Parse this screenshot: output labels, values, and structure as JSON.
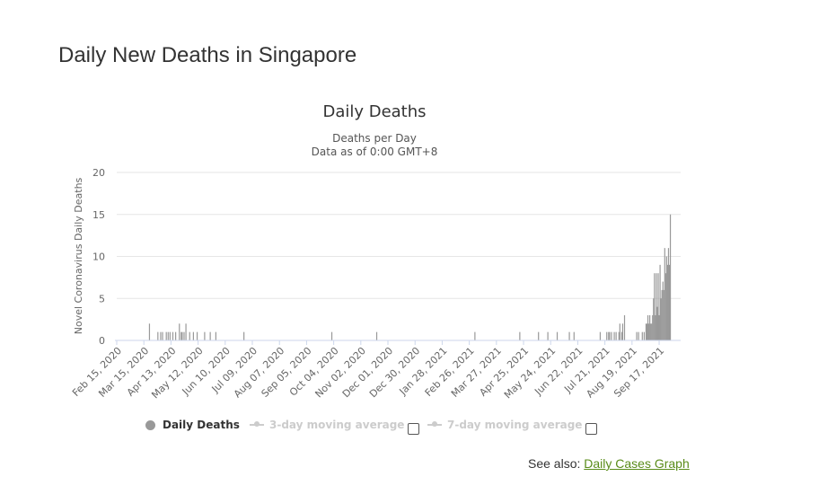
{
  "page": {
    "title": "Daily New Deaths in Singapore"
  },
  "chart_data": {
    "type": "bar",
    "title": "Daily Deaths",
    "subtitle_line1": "Deaths per Day",
    "subtitle_line2": "Data as of 0:00 GMT+8",
    "xlabel": "",
    "ylabel": "Novel Coronavirus Daily Deaths",
    "ylim": [
      0,
      20
    ],
    "yticks": [
      0,
      5,
      10,
      15,
      20
    ],
    "grid": true,
    "series_color": "#999999",
    "x_start_date": "2020-02-15",
    "x_end_date": "2021-10-10",
    "xtick_labels": [
      "Feb 15, 2020",
      "Mar 15, 2020",
      "Apr 13, 2020",
      "May 12, 2020",
      "Jun 10, 2020",
      "Jul 09, 2020",
      "Aug 07, 2020",
      "Sep 05, 2020",
      "Oct 04, 2020",
      "Nov 02, 2020",
      "Dec 01, 2020",
      "Dec 30, 2020",
      "Jan 28, 2021",
      "Feb 26, 2021",
      "Mar 27, 2021",
      "Apr 25, 2021",
      "May 24, 2021",
      "Jun 22, 2021",
      "Jul 21, 2021",
      "Aug 19, 2021",
      "Sep 17, 2021"
    ],
    "series": [
      {
        "name": "Daily Deaths",
        "points": [
          {
            "x": "2020-03-21",
            "y": 2
          },
          {
            "x": "2020-03-30",
            "y": 1
          },
          {
            "x": "2020-04-02",
            "y": 1
          },
          {
            "x": "2020-04-04",
            "y": 1
          },
          {
            "x": "2020-04-08",
            "y": 1
          },
          {
            "x": "2020-04-10",
            "y": 1
          },
          {
            "x": "2020-04-12",
            "y": 1
          },
          {
            "x": "2020-04-15",
            "y": 1
          },
          {
            "x": "2020-04-18",
            "y": 1
          },
          {
            "x": "2020-04-22",
            "y": 2
          },
          {
            "x": "2020-04-24",
            "y": 1
          },
          {
            "x": "2020-04-25",
            "y": 1
          },
          {
            "x": "2020-04-27",
            "y": 1
          },
          {
            "x": "2020-04-29",
            "y": 2
          },
          {
            "x": "2020-05-03",
            "y": 1
          },
          {
            "x": "2020-05-07",
            "y": 1
          },
          {
            "x": "2020-05-11",
            "y": 1
          },
          {
            "x": "2020-05-19",
            "y": 1
          },
          {
            "x": "2020-05-25",
            "y": 1
          },
          {
            "x": "2020-05-31",
            "y": 1
          },
          {
            "x": "2020-06-30",
            "y": 1
          },
          {
            "x": "2020-10-02",
            "y": 1
          },
          {
            "x": "2020-11-19",
            "y": 1
          },
          {
            "x": "2021-03-04",
            "y": 1
          },
          {
            "x": "2021-04-21",
            "y": 1
          },
          {
            "x": "2021-05-11",
            "y": 1
          },
          {
            "x": "2021-05-21",
            "y": 1
          },
          {
            "x": "2021-05-31",
            "y": 1
          },
          {
            "x": "2021-06-13",
            "y": 1
          },
          {
            "x": "2021-06-18",
            "y": 1
          },
          {
            "x": "2021-07-16",
            "y": 1
          },
          {
            "x": "2021-07-23",
            "y": 1
          },
          {
            "x": "2021-07-25",
            "y": 1
          },
          {
            "x": "2021-07-26",
            "y": 1
          },
          {
            "x": "2021-07-28",
            "y": 1
          },
          {
            "x": "2021-07-31",
            "y": 1
          },
          {
            "x": "2021-08-02",
            "y": 1
          },
          {
            "x": "2021-08-05",
            "y": 1
          },
          {
            "x": "2021-08-06",
            "y": 2
          },
          {
            "x": "2021-08-08",
            "y": 1
          },
          {
            "x": "2021-08-09",
            "y": 2
          },
          {
            "x": "2021-08-11",
            "y": 3
          },
          {
            "x": "2021-08-24",
            "y": 1
          },
          {
            "x": "2021-08-26",
            "y": 1
          },
          {
            "x": "2021-08-30",
            "y": 1
          },
          {
            "x": "2021-09-01",
            "y": 1
          },
          {
            "x": "2021-09-03",
            "y": 2
          },
          {
            "x": "2021-09-04",
            "y": 2
          },
          {
            "x": "2021-09-05",
            "y": 3
          },
          {
            "x": "2021-09-06",
            "y": 2
          },
          {
            "x": "2021-09-07",
            "y": 3
          },
          {
            "x": "2021-09-08",
            "y": 2
          },
          {
            "x": "2021-09-09",
            "y": 2
          },
          {
            "x": "2021-09-10",
            "y": 3
          },
          {
            "x": "2021-09-11",
            "y": 5
          },
          {
            "x": "2021-09-12",
            "y": 8
          },
          {
            "x": "2021-09-13",
            "y": 3
          },
          {
            "x": "2021-09-14",
            "y": 8
          },
          {
            "x": "2021-09-15",
            "y": 4
          },
          {
            "x": "2021-09-16",
            "y": 8
          },
          {
            "x": "2021-09-17",
            "y": 3
          },
          {
            "x": "2021-09-18",
            "y": 9
          },
          {
            "x": "2021-09-19",
            "y": 5
          },
          {
            "x": "2021-09-20",
            "y": 6
          },
          {
            "x": "2021-09-21",
            "y": 7
          },
          {
            "x": "2021-09-22",
            "y": 6
          },
          {
            "x": "2021-09-23",
            "y": 11
          },
          {
            "x": "2021-09-24",
            "y": 8
          },
          {
            "x": "2021-09-25",
            "y": 10
          },
          {
            "x": "2021-09-26",
            "y": 9
          },
          {
            "x": "2021-09-27",
            "y": 11
          },
          {
            "x": "2021-09-28",
            "y": 9
          },
          {
            "x": "2021-09-29",
            "y": 15
          }
        ]
      }
    ]
  },
  "legend": {
    "daily": "Daily Deaths",
    "ma3": "3-day moving average",
    "ma7": "7-day moving average"
  },
  "see_also": {
    "prefix": "See also:",
    "link": "Daily Cases Graph"
  }
}
